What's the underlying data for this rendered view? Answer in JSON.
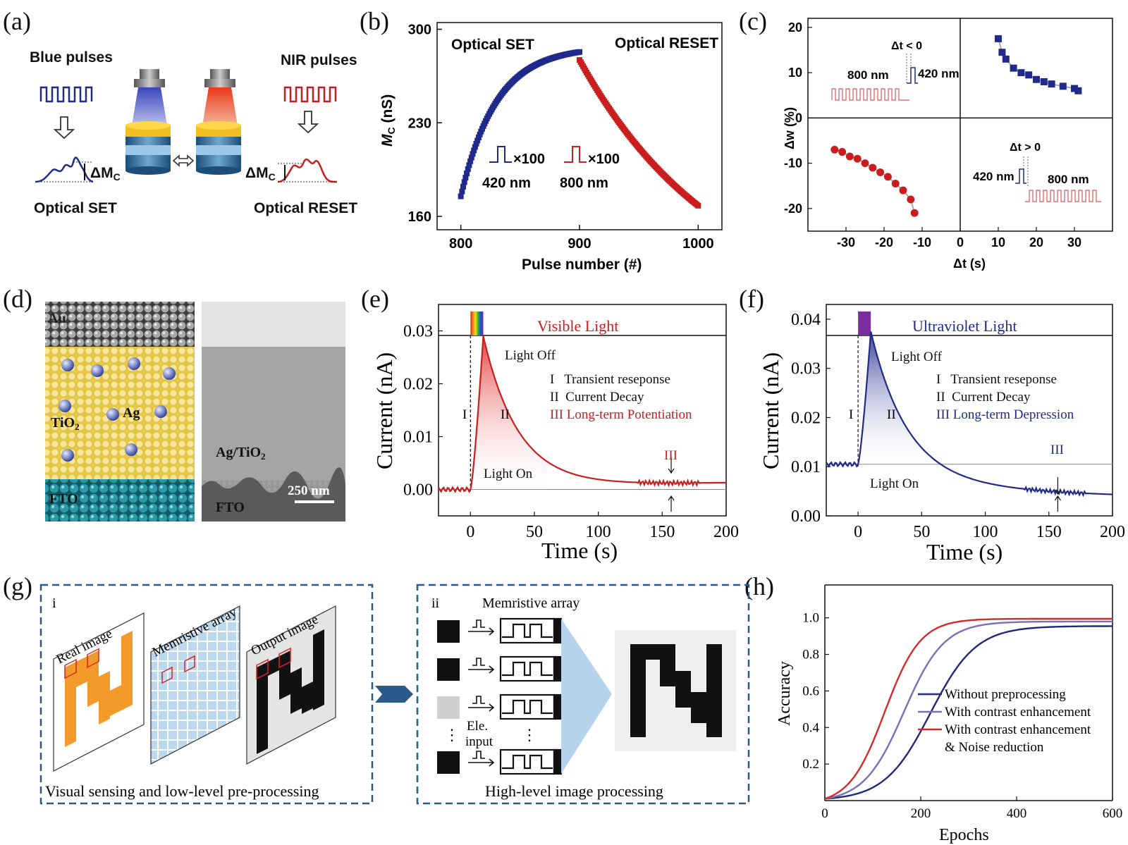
{
  "panel_labels": {
    "a": "(a)",
    "b": "(b)",
    "c": "(c)",
    "d": "(d)",
    "e": "(e)",
    "f": "(f)",
    "g": "(g)",
    "h": "(h)"
  },
  "panel_a": {
    "blue_pulses": "Blue pulses",
    "nir_pulses": "NIR pulses",
    "delta_mc": "ΔM",
    "mc_sub": "C",
    "optical_set": "Optical SET",
    "optical_reset": "Optical RESET",
    "colors": {
      "blue": "#1f2a8a",
      "red": "#c81e1e"
    }
  },
  "panel_b": {
    "set_label": "Optical SET",
    "reset_label": "Optical RESET",
    "xlabel": "Pulse number (#)",
    "ylabel_main": "M",
    "ylabel_sub": "C",
    "ylabel_unit": " (nS)",
    "times": "×100",
    "blue_wl": "420 nm",
    "red_wl": "800 nm",
    "chart_data": {
      "type": "scatter",
      "xlim": [
        780,
        1020
      ],
      "ylim": [
        150,
        305
      ],
      "xticks": [
        "800",
        "900",
        "1000"
      ],
      "yticks": [
        "160",
        "230",
        "300"
      ],
      "series": [
        {
          "color": "#1f2a8a",
          "x_start": 800,
          "x_end": 900,
          "y_start": 175,
          "y_end": 283,
          "tau": 30
        },
        {
          "color": "#c81e1e",
          "x_start": 900,
          "x_end": 1000,
          "y_start": 277,
          "y_end": 168,
          "tau": 120
        }
      ]
    }
  },
  "panel_c": {
    "xlabel": "Δt (s)",
    "ylabel": "Δw (%)",
    "neg_label": "Δt < 0",
    "pos_label": "Δt > 0",
    "wl_800": "800 nm",
    "wl_420": "420 nm",
    "chart_data": {
      "type": "scatter",
      "xlim": [
        -40,
        40
      ],
      "ylim": [
        -25,
        22
      ],
      "xticks": [
        "-30",
        "-20",
        "-10",
        "0",
        "10",
        "20",
        "30"
      ],
      "yticks": [
        "20",
        "10",
        "0",
        "-10",
        "-20"
      ],
      "series": [
        {
          "color": "#1f2a8a",
          "x": [
            10,
            11,
            12,
            14,
            16,
            18,
            20,
            22,
            24,
            27,
            30,
            31
          ],
          "y": [
            17.5,
            14.5,
            13,
            11,
            10,
            9.5,
            8.5,
            8,
            7.5,
            7,
            6.5,
            6
          ]
        },
        {
          "color": "#c81e1e",
          "x": [
            -33,
            -31,
            -29,
            -27,
            -25,
            -23,
            -21,
            -19,
            -17,
            -15,
            -13,
            -12
          ],
          "y": [
            -7,
            -7.5,
            -8.5,
            -9,
            -10,
            -11,
            -12,
            -13,
            -14.5,
            -16,
            -18,
            -21
          ]
        }
      ]
    }
  },
  "panel_d": {
    "au": "Au",
    "tio2": "TiO",
    "tio2_sub": "2",
    "ag": "Ag",
    "fto": "FTO",
    "tem_layer": "Ag/TiO",
    "tem_layer_sub": "2",
    "tem_fto": "FTO",
    "scale": "250 nm"
  },
  "panel_e": {
    "light_label": "Visible Light",
    "light_off": "Light Off",
    "light_on": "Light On",
    "leg1": "I   Transient reseponse",
    "leg2": "II  Current Decay",
    "leg3": "III Long-term Potentiation",
    "m1": "I",
    "m2": "II",
    "m3": "III",
    "xlabel": "Time (s)",
    "ylabel": "Current (nA)",
    "chart_data": {
      "type": "line",
      "xlim": [
        -25,
        200
      ],
      "ylim": [
        -0.005,
        0.035
      ],
      "xticks": [
        "0",
        "50",
        "100",
        "150",
        "200"
      ],
      "yticks": [
        "0.00",
        "0.01",
        "0.02",
        "0.03"
      ],
      "baseline": 0,
      "peak": {
        "x": 10,
        "y": 0.029
      },
      "end": {
        "x": 200,
        "y": 0.0018
      },
      "color": "#c81e1e"
    }
  },
  "panel_f": {
    "light_label": "Ultraviolet Light",
    "light_off": "Light Off",
    "light_on": "Light On",
    "leg1": "I   Transient reseponse",
    "leg2": "II  Current Decay",
    "leg3": "III Long-term Depression",
    "m1": "I",
    "m2": "II",
    "m3": "III",
    "xlabel": "Time (s)",
    "ylabel": "Current (nA)",
    "chart_data": {
      "type": "line",
      "xlim": [
        -25,
        200
      ],
      "ylim": [
        0,
        0.043
      ],
      "xticks": [
        "0",
        "50",
        "100",
        "150",
        "200"
      ],
      "yticks": [
        "0.00",
        "0.01",
        "0.02",
        "0.03",
        "0.04"
      ],
      "baseline": 0.0105,
      "peak": {
        "x": 10,
        "y": 0.0375
      },
      "end": {
        "x": 200,
        "y": 0.003
      },
      "color": "#1f2a8a"
    }
  },
  "panel_g": {
    "i": "i",
    "ii": "ii",
    "real_image": "Real image",
    "memristive_array": "Memristive array",
    "output_image": "Output image",
    "caption_left": "Visual sensing and low-level pre-processing",
    "caption_right": "High-level image processing",
    "array_title": "Memristive array",
    "ele_input_1": "Ele.",
    "ele_input_2": "input"
  },
  "panel_h": {
    "xlabel": "Epochs",
    "ylabel": "Accuracy",
    "chart_data": {
      "type": "line",
      "xlim": [
        0,
        600
      ],
      "ylim": [
        0,
        1.18
      ],
      "xticks": [
        "0",
        "200",
        "400",
        "600"
      ],
      "yticks": [
        "0.2",
        "0.4",
        "0.6",
        "0.8",
        "1.0"
      ],
      "series": [
        {
          "name": "Without preprocessing",
          "color": "#1f2a7a",
          "final": 0.945,
          "k": 0.021,
          "mid": 220
        },
        {
          "name": "With contrast enhancement",
          "color": "#7a6fb8",
          "final": 0.97,
          "k": 0.024,
          "mid": 165
        },
        {
          "name": "With contrast enhancement",
          "name2": "& Noise reduction",
          "color": "#d42a2a",
          "final": 0.985,
          "k": 0.027,
          "mid": 125
        }
      ]
    }
  }
}
